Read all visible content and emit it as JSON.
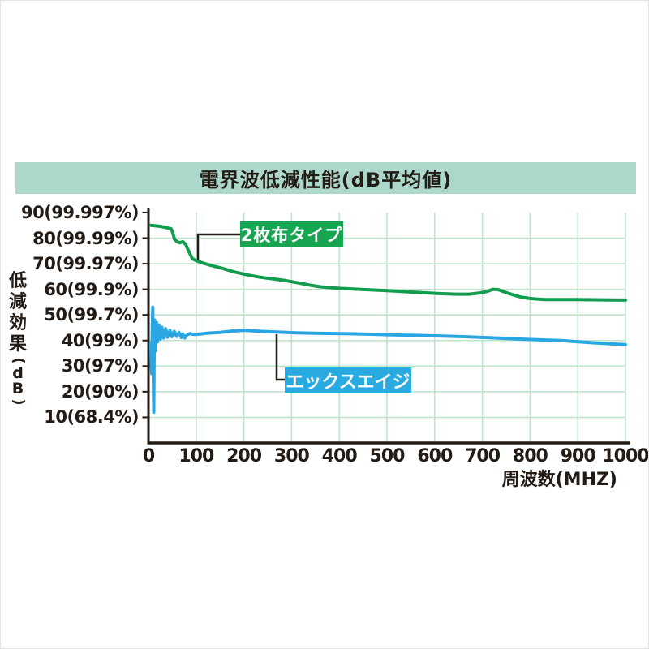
{
  "page": {
    "title_bar": "電界波低減性能(dB平均値)"
  },
  "colors": {
    "title_bar_bg": "#abd8ca",
    "grid": "#bfe3cb",
    "axis": "#231b15",
    "text": "#231b15",
    "cloth_label_bg": "#17a551",
    "xage_label_bg": "#29abe2"
  },
  "chart_data": {
    "type": "line",
    "title": "電界波低減性能(dB平均値)",
    "xlabel": "周波数(MHZ)",
    "ylabel": "低減効果(dB)",
    "xlim": [
      0,
      1000
    ],
    "ylim": [
      0,
      90
    ],
    "grid": true,
    "legend_position": "inline-callouts",
    "x_ticks": [
      0,
      100,
      200,
      300,
      400,
      500,
      600,
      700,
      800,
      900,
      1000
    ],
    "y_ticks": [
      {
        "value": 90,
        "label": "90(99.997%)"
      },
      {
        "value": 80,
        "label": "80(99.99%)"
      },
      {
        "value": 70,
        "label": "70(99.97%)"
      },
      {
        "value": 60,
        "label": "60(99.9%)"
      },
      {
        "value": 50,
        "label": "50(99.7%)"
      },
      {
        "value": 40,
        "label": "40(99%)"
      },
      {
        "value": 30,
        "label": "30(97%)"
      },
      {
        "value": 20,
        "label": "20(90%)"
      },
      {
        "value": 10,
        "label": "10(68.4%)"
      }
    ],
    "series": [
      {
        "name": "2枚布タイプ",
        "color": "#119c4e",
        "points": [
          [
            5,
            85
          ],
          [
            25,
            84.6
          ],
          [
            40,
            84
          ],
          [
            48,
            83.6
          ],
          [
            51,
            82
          ],
          [
            55,
            79.5
          ],
          [
            60,
            78.6
          ],
          [
            66,
            78.2
          ],
          [
            72,
            78.6
          ],
          [
            78,
            77.6
          ],
          [
            84,
            75
          ],
          [
            92,
            72
          ],
          [
            100,
            71.2
          ],
          [
            112,
            70.4
          ],
          [
            130,
            69.4
          ],
          [
            155,
            68.2
          ],
          [
            180,
            66.8
          ],
          [
            206,
            65.7
          ],
          [
            235,
            64.7
          ],
          [
            260,
            64.1
          ],
          [
            285,
            63.5
          ],
          [
            315,
            62.5
          ],
          [
            340,
            61.6
          ],
          [
            360,
            61
          ],
          [
            400,
            60.4
          ],
          [
            455,
            59.9
          ],
          [
            500,
            59.5
          ],
          [
            545,
            59
          ],
          [
            605,
            58.4
          ],
          [
            645,
            58.1
          ],
          [
            672,
            58.1
          ],
          [
            695,
            58.6
          ],
          [
            710,
            59.2
          ],
          [
            722,
            60
          ],
          [
            733,
            59.9
          ],
          [
            755,
            58.4
          ],
          [
            780,
            57
          ],
          [
            800,
            56.4
          ],
          [
            830,
            56
          ],
          [
            900,
            56
          ],
          [
            1000,
            55.8
          ]
        ]
      },
      {
        "name": "エックスエイジ",
        "color": "#2aa7e2",
        "points": [
          [
            5,
            39
          ],
          [
            6,
            30
          ],
          [
            7,
            27
          ],
          [
            8,
            44
          ],
          [
            9,
            53
          ],
          [
            10,
            30
          ],
          [
            11,
            12
          ],
          [
            12,
            40
          ],
          [
            13,
            48
          ],
          [
            15,
            36
          ],
          [
            17,
            47
          ],
          [
            19,
            39.5
          ],
          [
            22,
            46
          ],
          [
            25,
            40.5
          ],
          [
            28,
            45.2
          ],
          [
            32,
            41
          ],
          [
            36,
            44.6
          ],
          [
            40,
            41.3
          ],
          [
            45,
            44
          ],
          [
            49,
            41.5
          ],
          [
            54,
            43.6
          ],
          [
            59,
            41.6
          ],
          [
            64,
            43.2
          ],
          [
            69,
            41.2
          ],
          [
            72,
            42.6
          ],
          [
            76,
            41
          ],
          [
            82,
            42.4
          ],
          [
            88,
            42.7
          ],
          [
            95,
            42.4
          ],
          [
            105,
            42.5
          ],
          [
            125,
            42.9
          ],
          [
            150,
            43.2
          ],
          [
            175,
            43.7
          ],
          [
            200,
            44
          ],
          [
            235,
            43.6
          ],
          [
            269,
            43.3
          ],
          [
            310,
            43
          ],
          [
            360,
            42.8
          ],
          [
            410,
            42.7
          ],
          [
            460,
            42.5
          ],
          [
            510,
            42.2
          ],
          [
            560,
            42
          ],
          [
            610,
            41.8
          ],
          [
            660,
            41.5
          ],
          [
            715,
            41.1
          ],
          [
            765,
            40.7
          ],
          [
            815,
            40.3
          ],
          [
            865,
            40
          ],
          [
            925,
            39.2
          ],
          [
            1000,
            38.4
          ]
        ]
      }
    ]
  }
}
